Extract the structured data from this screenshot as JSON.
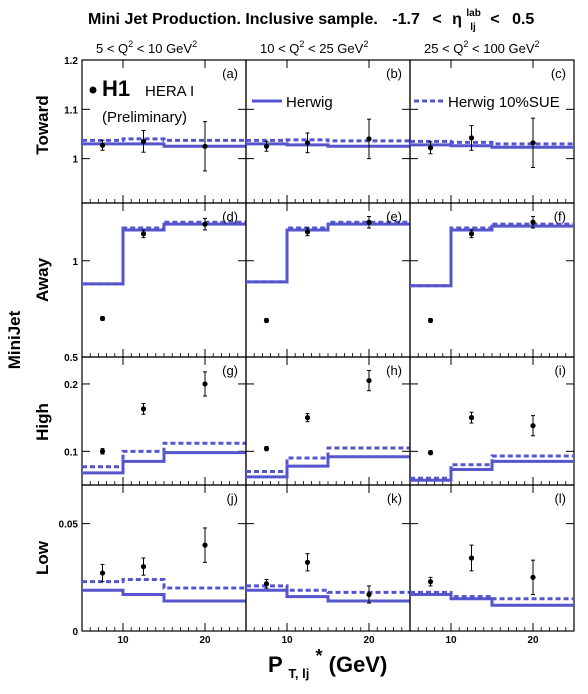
{
  "title": {
    "main": "Mini Jet Production.  Inclusive sample.",
    "range_lo": "-1.7",
    "lt1": "<",
    "eta": "η",
    "eta_sup": "lab",
    "eta_sub": "lj",
    "lt2": "<",
    "range_hi": "0.5"
  },
  "columns": [
    {
      "lo": "5",
      "hi": "10",
      "var": "Q",
      "sup": "2",
      "unit": "GeV",
      "unit_sup": "2"
    },
    {
      "lo": "10",
      "hi": "25",
      "var": "Q",
      "sup": "2",
      "unit": "GeV",
      "unit_sup": "2"
    },
    {
      "lo": "25",
      "hi": "100",
      "var": "Q",
      "sup": "2",
      "unit": "GeV",
      "unit_sup": "2"
    }
  ],
  "rows": [
    "Toward",
    "Away",
    "High",
    "Low"
  ],
  "y_axis_label": "MiniJet",
  "x_axis_label": {
    "main": "P",
    "sub": "T, lj",
    "star": "*",
    "unit": " (GeV)"
  },
  "legend": {
    "h1": "H1",
    "herai": "HERA I",
    "prelim": "(Preliminary)",
    "herwig": "Herwig",
    "sue": "Herwig 10%SUE"
  },
  "panel_labels": [
    "(a)",
    "(b)",
    "(c)",
    "(d)",
    "(e)",
    "(f)",
    "(g)",
    "(h)",
    "(i)",
    "(j)",
    "(k)",
    "(l)"
  ],
  "chart_data": {
    "type": "line",
    "x_range": [
      5,
      25
    ],
    "x_ticks": [
      "10",
      "20"
    ],
    "x_tick_values": [
      10,
      20
    ],
    "bins": [
      [
        5,
        10
      ],
      [
        10,
        15
      ],
      [
        15,
        25
      ]
    ],
    "rows": [
      {
        "name": "Toward",
        "ylim": [
          0.91,
          1.2
        ],
        "yticks": [
          "1",
          "1.1",
          "1.2"
        ],
        "ytick_values": [
          1,
          1.1,
          1.2
        ],
        "panels": [
          {
            "data": [
              [
                7.5,
                1.027
              ],
              [
                12.5,
                1.035
              ],
              [
                20,
                1.025
              ]
            ],
            "err": [
              0.01,
              0.022,
              0.05
            ],
            "herwig": [
              1.03,
              1.03,
              1.025
            ],
            "sue": [
              1.037,
              1.04,
              1.037
            ]
          },
          {
            "data": [
              [
                7.5,
                1.025
              ],
              [
                12.5,
                1.032
              ],
              [
                20,
                1.04
              ]
            ],
            "err": [
              0.01,
              0.02,
              0.04
            ],
            "herwig": [
              1.03,
              1.028,
              1.025
            ],
            "sue": [
              1.037,
              1.038,
              1.036
            ]
          },
          {
            "data": [
              [
                7.5,
                1.022
              ],
              [
                12.5,
                1.042
              ],
              [
                20,
                1.032
              ]
            ],
            "err": [
              0.012,
              0.025,
              0.05
            ],
            "herwig": [
              1.028,
              1.026,
              1.023
            ],
            "sue": [
              1.035,
              1.033,
              1.03
            ]
          }
        ]
      },
      {
        "name": "Away",
        "ylim": [
          0.5,
          1.3
        ],
        "yticks": [
          "0.5",
          "1"
        ],
        "ytick_values": [
          0.5,
          1
        ],
        "panels": [
          {
            "data": [
              [
                7.5,
                0.7
              ],
              [
                12.5,
                1.14
              ],
              [
                20,
                1.19
              ]
            ],
            "err": [
              0.01,
              0.02,
              0.03
            ],
            "herwig": [
              0.88,
              1.16,
              1.19
            ],
            "sue": [
              0.88,
              1.17,
              1.2
            ]
          },
          {
            "data": [
              [
                7.5,
                0.69
              ],
              [
                12.5,
                1.15
              ],
              [
                20,
                1.2
              ]
            ],
            "err": [
              0.01,
              0.02,
              0.03
            ],
            "herwig": [
              0.89,
              1.16,
              1.19
            ],
            "sue": [
              0.89,
              1.17,
              1.2
            ]
          },
          {
            "data": [
              [
                7.5,
                0.69
              ],
              [
                12.5,
                1.14
              ],
              [
                20,
                1.2
              ]
            ],
            "err": [
              0.01,
              0.02,
              0.03
            ],
            "herwig": [
              0.87,
              1.16,
              1.18
            ],
            "sue": [
              0.87,
              1.17,
              1.19
            ]
          }
        ]
      },
      {
        "name": "High",
        "ylim": [
          0.05,
          0.24
        ],
        "yticks": [
          "0.1",
          "0.2"
        ],
        "ytick_values": [
          0.1,
          0.2
        ],
        "panels": [
          {
            "data": [
              [
                7.5,
                0.1
              ],
              [
                12.5,
                0.163
              ],
              [
                20,
                0.2
              ]
            ],
            "err": [
              0.004,
              0.008,
              0.018
            ],
            "herwig": [
              0.068,
              0.085,
              0.098
            ],
            "sue": [
              0.077,
              0.1,
              0.112
            ]
          },
          {
            "data": [
              [
                7.5,
                0.104
              ],
              [
                12.5,
                0.15
              ],
              [
                20,
                0.205
              ]
            ],
            "err": [
              0.003,
              0.006,
              0.015
            ],
            "herwig": [
              0.062,
              0.078,
              0.092
            ],
            "sue": [
              0.07,
              0.09,
              0.105
            ]
          },
          {
            "data": [
              [
                7.5,
                0.098
              ],
              [
                12.5,
                0.15
              ],
              [
                20,
                0.138
              ]
            ],
            "err": [
              0.003,
              0.008,
              0.015
            ],
            "herwig": [
              0.057,
              0.073,
              0.085
            ],
            "sue": [
              0.06,
              0.08,
              0.093
            ]
          }
        ]
      },
      {
        "name": "Low",
        "ylim": [
          0,
          0.068
        ],
        "yticks": [
          "0",
          "0.05"
        ],
        "ytick_values": [
          0,
          0.05
        ],
        "panels": [
          {
            "data": [
              [
                7.5,
                0.027
              ],
              [
                12.5,
                0.03
              ],
              [
                20,
                0.04
              ]
            ],
            "err": [
              0.004,
              0.004,
              0.008
            ],
            "herwig": [
              0.019,
              0.017,
              0.014
            ],
            "sue": [
              0.023,
              0.024,
              0.02
            ]
          },
          {
            "data": [
              [
                7.5,
                0.022
              ],
              [
                12.5,
                0.032
              ],
              [
                20,
                0.017
              ]
            ],
            "err": [
              0.002,
              0.004,
              0.004
            ],
            "herwig": [
              0.019,
              0.016,
              0.014
            ],
            "sue": [
              0.021,
              0.019,
              0.018
            ]
          },
          {
            "data": [
              [
                7.5,
                0.023
              ],
              [
                12.5,
                0.034
              ],
              [
                20,
                0.025
              ]
            ],
            "err": [
              0.002,
              0.006,
              0.008
            ],
            "herwig": [
              0.017,
              0.015,
              0.012
            ],
            "sue": [
              0.018,
              0.016,
              0.015
            ]
          }
        ]
      }
    ]
  },
  "colors": {
    "herwig": "#5555cc",
    "sue": "#5555cc",
    "data": "#000000"
  }
}
